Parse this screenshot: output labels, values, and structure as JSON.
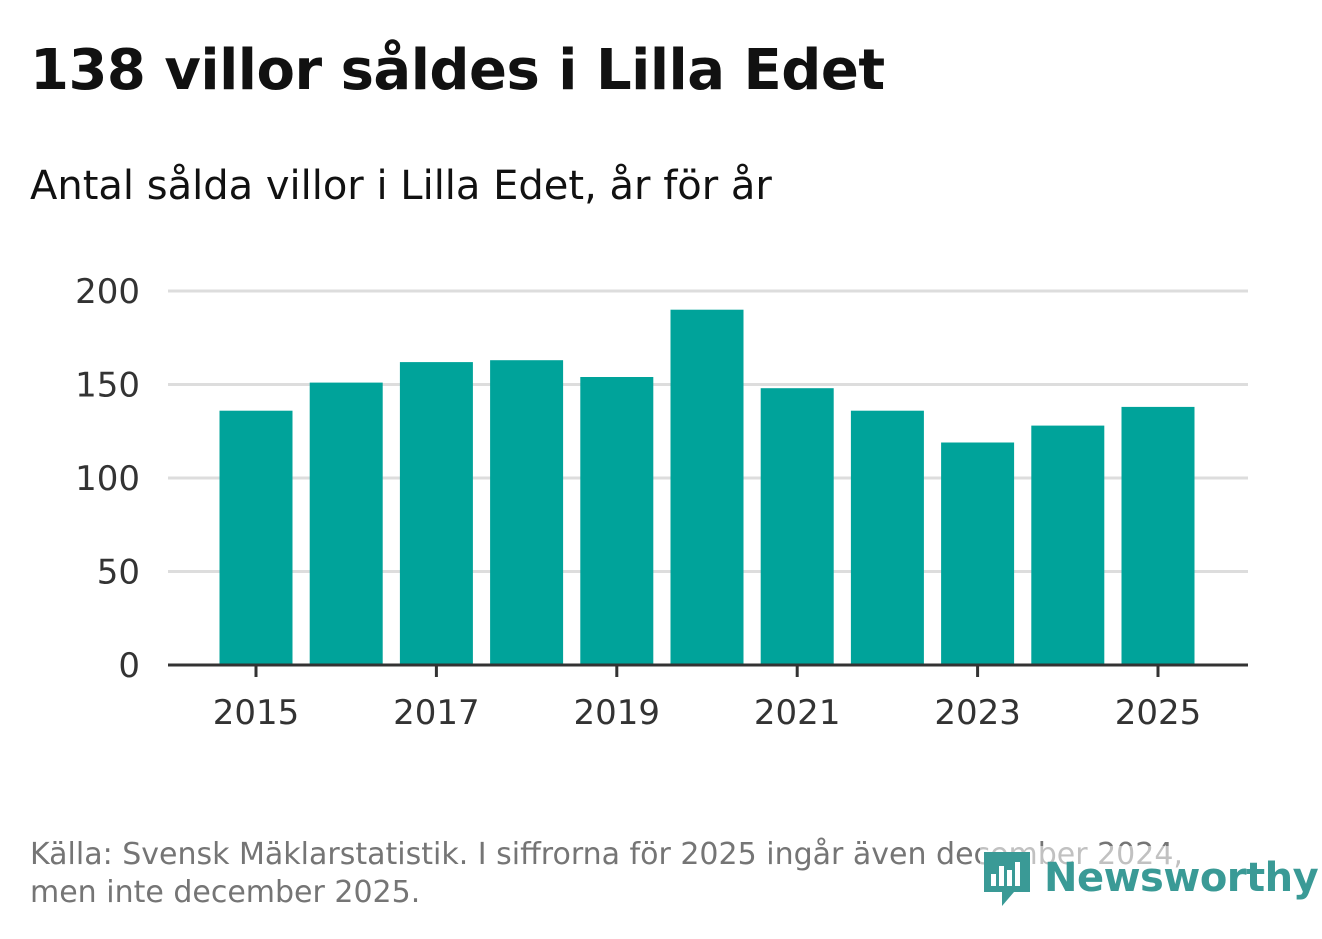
{
  "header": {
    "title": "138 villor såldes i Lilla Edet",
    "subtitle": "Antal sålda villor i Lilla Edet, år för år"
  },
  "chart_data": {
    "type": "bar",
    "title": "138 villor såldes i Lilla Edet",
    "subtitle": "Antal sålda villor i Lilla Edet, år för år",
    "categories": [
      "2015",
      "2016",
      "2017",
      "2018",
      "2019",
      "2020",
      "2021",
      "2022",
      "2023",
      "2024",
      "2025"
    ],
    "values": [
      136,
      151,
      162,
      163,
      154,
      190,
      148,
      136,
      119,
      128,
      138
    ],
    "x_tick_labels": [
      "2015",
      "2017",
      "2019",
      "2021",
      "2023",
      "2025"
    ],
    "y_ticks": [
      0,
      50,
      100,
      150,
      200
    ],
    "ylim": [
      0,
      200
    ],
    "xlabel": "",
    "ylabel": "",
    "grid": true,
    "bar_color": "#00a39a",
    "grid_color": "#dddddd",
    "axis_color": "#333333"
  },
  "footer": {
    "source_line1": "Källa: Svensk Mäklarstatistik. I siffrorna för 2025 ingår även december 2024,",
    "source_line2": "men inte december 2025."
  },
  "brand": {
    "name": "Newsworthy",
    "icon": "newsworthy-logo-icon",
    "color": "#3a9a96"
  }
}
